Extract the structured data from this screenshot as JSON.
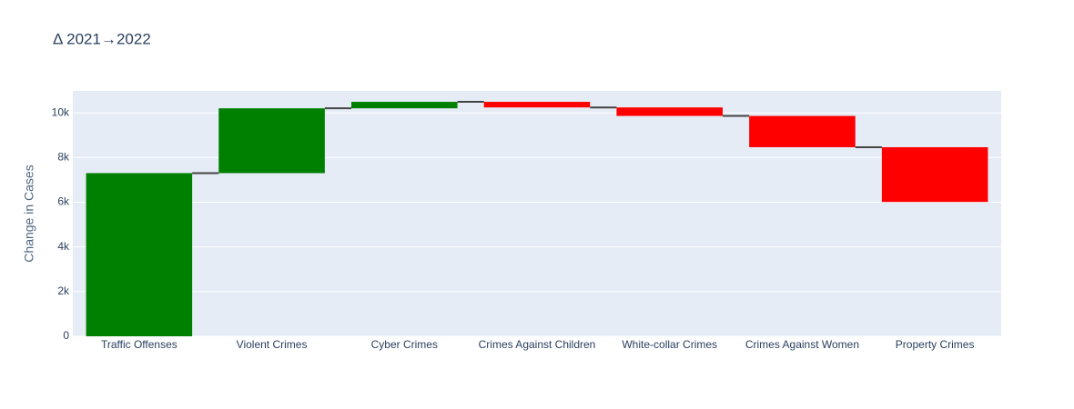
{
  "chart_data": {
    "type": "waterfall",
    "title": "Δ 2021→2022",
    "y_label": "Change in Cases",
    "categories": [
      "Traffic Offenses",
      "Violent Crimes",
      "Cyber Crimes",
      "Crimes Against Children",
      "White-collar Crimes",
      "Crimes Against Women",
      "Property Crimes"
    ],
    "values": [
      7300,
      2900,
      290,
      -250,
      -380,
      -1400,
      -2450
    ],
    "increasing_color": "green",
    "decreasing_color": "red",
    "connector_color": "#444",
    "ylim": [
      0,
      10980
    ],
    "yticks": [
      0,
      {
        "value": 2000,
        "label": "2k"
      },
      {
        "value": 4000,
        "label": "4k"
      },
      {
        "value": 6000,
        "label": "6k"
      },
      {
        "value": 8000,
        "label": "8k"
      },
      {
        "value": 10000,
        "label": "10k"
      }
    ],
    "grid": true
  }
}
